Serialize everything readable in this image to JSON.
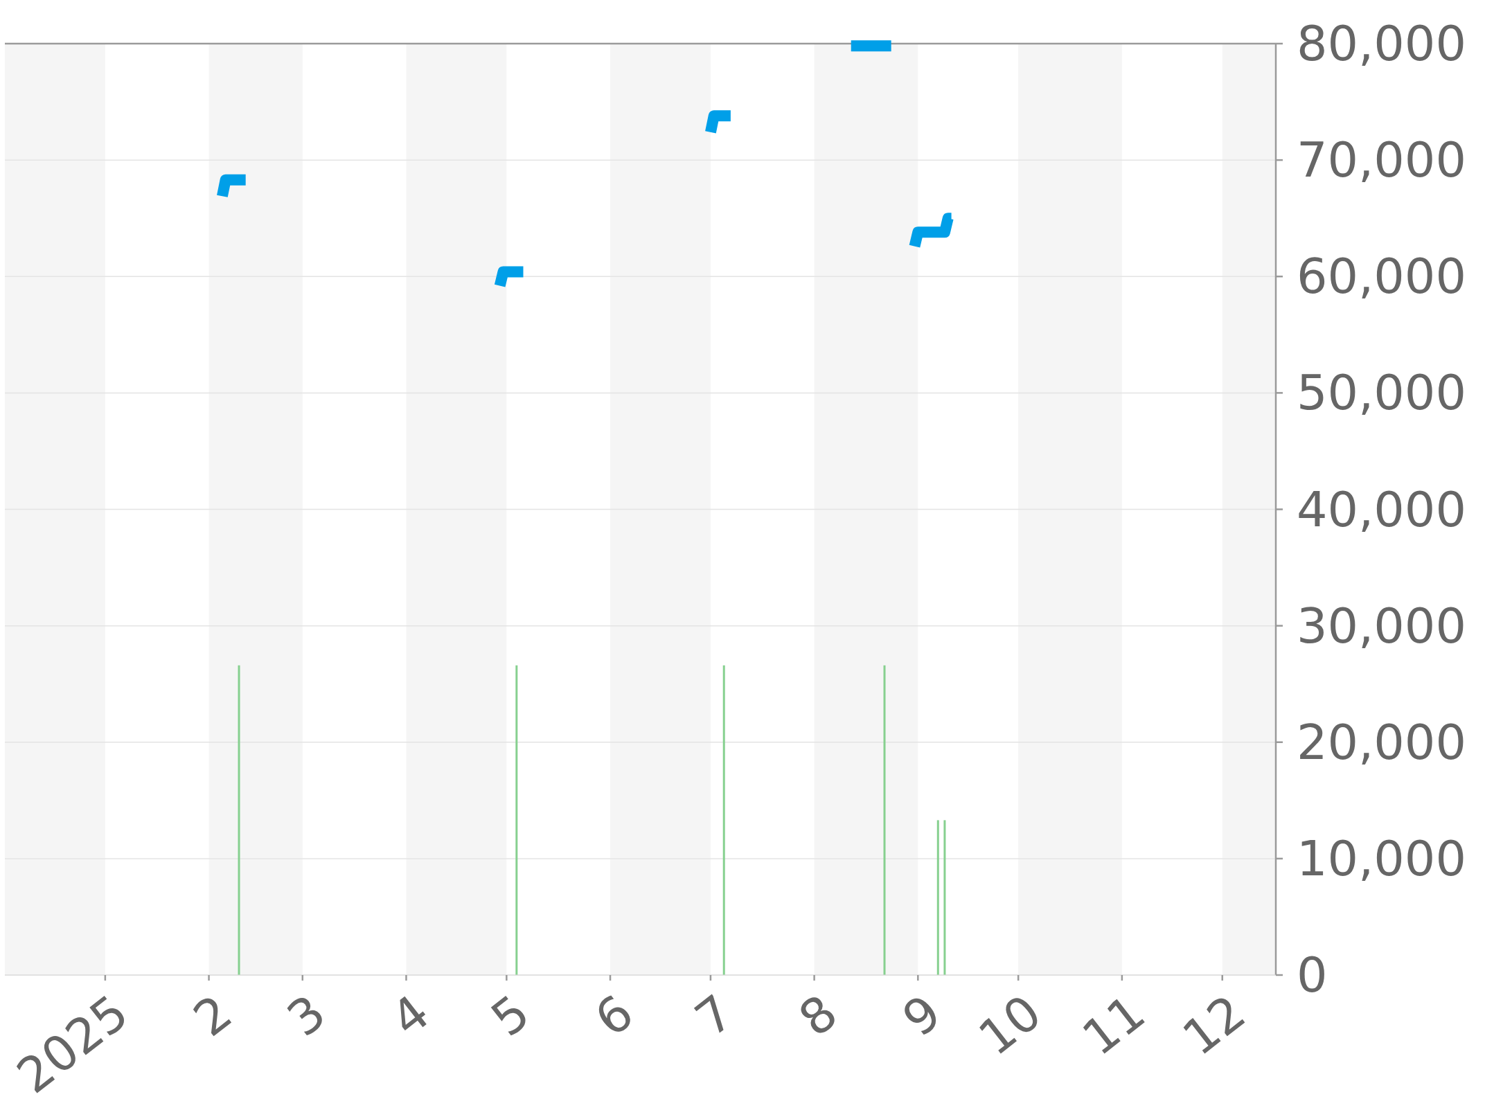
{
  "chart_data": {
    "type": "line",
    "xlim": [
      "2024-12-02",
      "2025-12-17"
    ],
    "xticks": [
      {
        "value": "2025-01-01",
        "label": "2025"
      },
      {
        "value": "2025-02-01",
        "label": "2"
      },
      {
        "value": "2025-03-01",
        "label": "3"
      },
      {
        "value": "2025-04-01",
        "label": "4"
      },
      {
        "value": "2025-05-01",
        "label": "5"
      },
      {
        "value": "2025-06-01",
        "label": "6"
      },
      {
        "value": "2025-07-01",
        "label": "7"
      },
      {
        "value": "2025-08-01",
        "label": "8"
      },
      {
        "value": "2025-09-01",
        "label": "9"
      },
      {
        "value": "2025-10-01",
        "label": "10"
      },
      {
        "value": "2025-11-01",
        "label": "11"
      },
      {
        "value": "2025-12-01",
        "label": "12"
      }
    ],
    "ylim": [
      0,
      80000
    ],
    "yticks": [
      0,
      {
        "value": 10000,
        "label": "10,000"
      },
      {
        "value": 20000,
        "label": "20,000"
      },
      {
        "value": 30000,
        "label": "30,000"
      },
      {
        "value": 40000,
        "label": "40,000"
      },
      {
        "value": 50000,
        "label": "50,000"
      },
      {
        "value": 60000,
        "label": "60,000"
      },
      {
        "value": 70000,
        "label": "70,000"
      },
      {
        "value": 80000,
        "label": "80,000"
      }
    ],
    "grid": "y",
    "bands": [
      {
        "axis": "x",
        "from": "2024-12-02",
        "to": "2025-01-01",
        "color": "#f5f5f5"
      },
      {
        "axis": "x",
        "from": "2025-02-01",
        "to": "2025-03-01",
        "color": "#f5f5f5"
      },
      {
        "axis": "x",
        "from": "2025-04-01",
        "to": "2025-05-01",
        "color": "#f5f5f5"
      },
      {
        "axis": "x",
        "from": "2025-06-01",
        "to": "2025-07-01",
        "color": "#f5f5f5"
      },
      {
        "axis": "x",
        "from": "2025-08-01",
        "to": "2025-09-01",
        "color": "#f5f5f5"
      },
      {
        "axis": "x",
        "from": "2025-10-01",
        "to": "2025-11-01",
        "color": "#f5f5f5"
      },
      {
        "axis": "x",
        "from": "2025-12-01",
        "to": "2025-12-17",
        "color": "#f5f5f5"
      }
    ],
    "series": [
      {
        "color": "#009fe8",
        "x": [
          "2025-02-05",
          "2025-02-06",
          "2025-02-12",
          "2025-03-15",
          "2025-04-29",
          "2025-04-30",
          "2025-05-06",
          "2025-06-01",
          "2025-07-01",
          "2025-07-02",
          "2025-07-07",
          "2025-07-25",
          "2025-08-12",
          "2025-08-24",
          "2025-08-28",
          "2025-08-31",
          "2025-09-01",
          "2025-09-09",
          "2025-09-10",
          "2025-09-11"
        ],
        "values": [
          66900,
          68300,
          68300,
          null,
          59200,
          60400,
          60400,
          null,
          72400,
          73800,
          73800,
          null,
          79800,
          79800,
          null,
          62600,
          63800,
          63800,
          65000,
          65000
        ]
      },
      {
        "type": "bar",
        "color": "#86d08f",
        "x": [
          "2025-02-10",
          "2025-05-04",
          "2025-07-05",
          "2025-08-22",
          "2025-09-07",
          "2025-09-09"
        ],
        "values": [
          26600,
          26600,
          26600,
          26600,
          13300,
          13300
        ]
      }
    ]
  }
}
